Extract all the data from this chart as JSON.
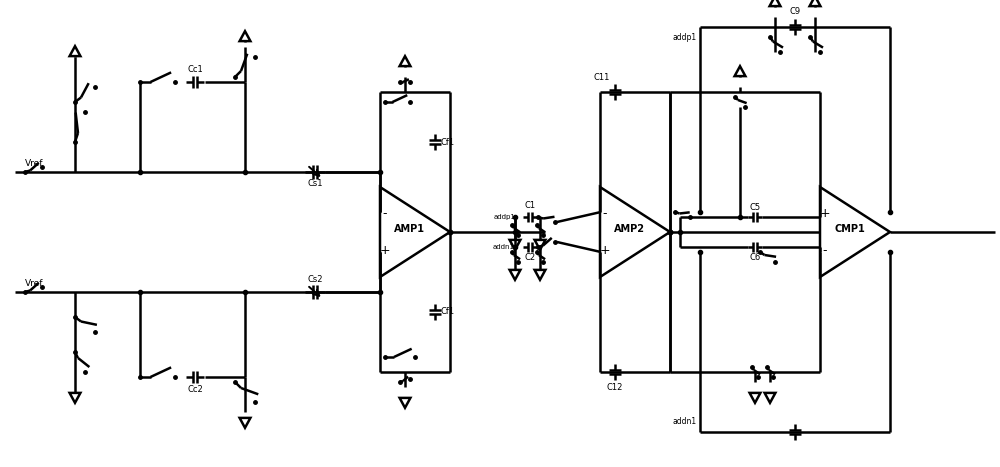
{
  "background_color": "#ffffff",
  "line_color": "#000000",
  "line_width": 1.8,
  "fig_width": 10.0,
  "fig_height": 4.67,
  "dpi": 100,
  "labels": {
    "Vref_top": "Vref",
    "Vref_bot": "Vref",
    "Cc1": "Cc1",
    "Cc2": "Cc2",
    "Cs1": "Cs1",
    "Cs2": "Cs2",
    "Cf1_top": "Cf1",
    "Cf1_bot": "Cf1",
    "AMP1": "AMP1",
    "AMP2": "AMP2",
    "CMP1": "CMP1",
    "C1": "C1",
    "C2": "C2",
    "C5": "C5",
    "C6": "C6",
    "C9": "C9",
    "C11": "C11",
    "C12": "C12",
    "addp1_c1": "addp1",
    "addn1_c2": "addn1",
    "addp1_c9": "addp1",
    "addn1_bot": "addn1"
  }
}
